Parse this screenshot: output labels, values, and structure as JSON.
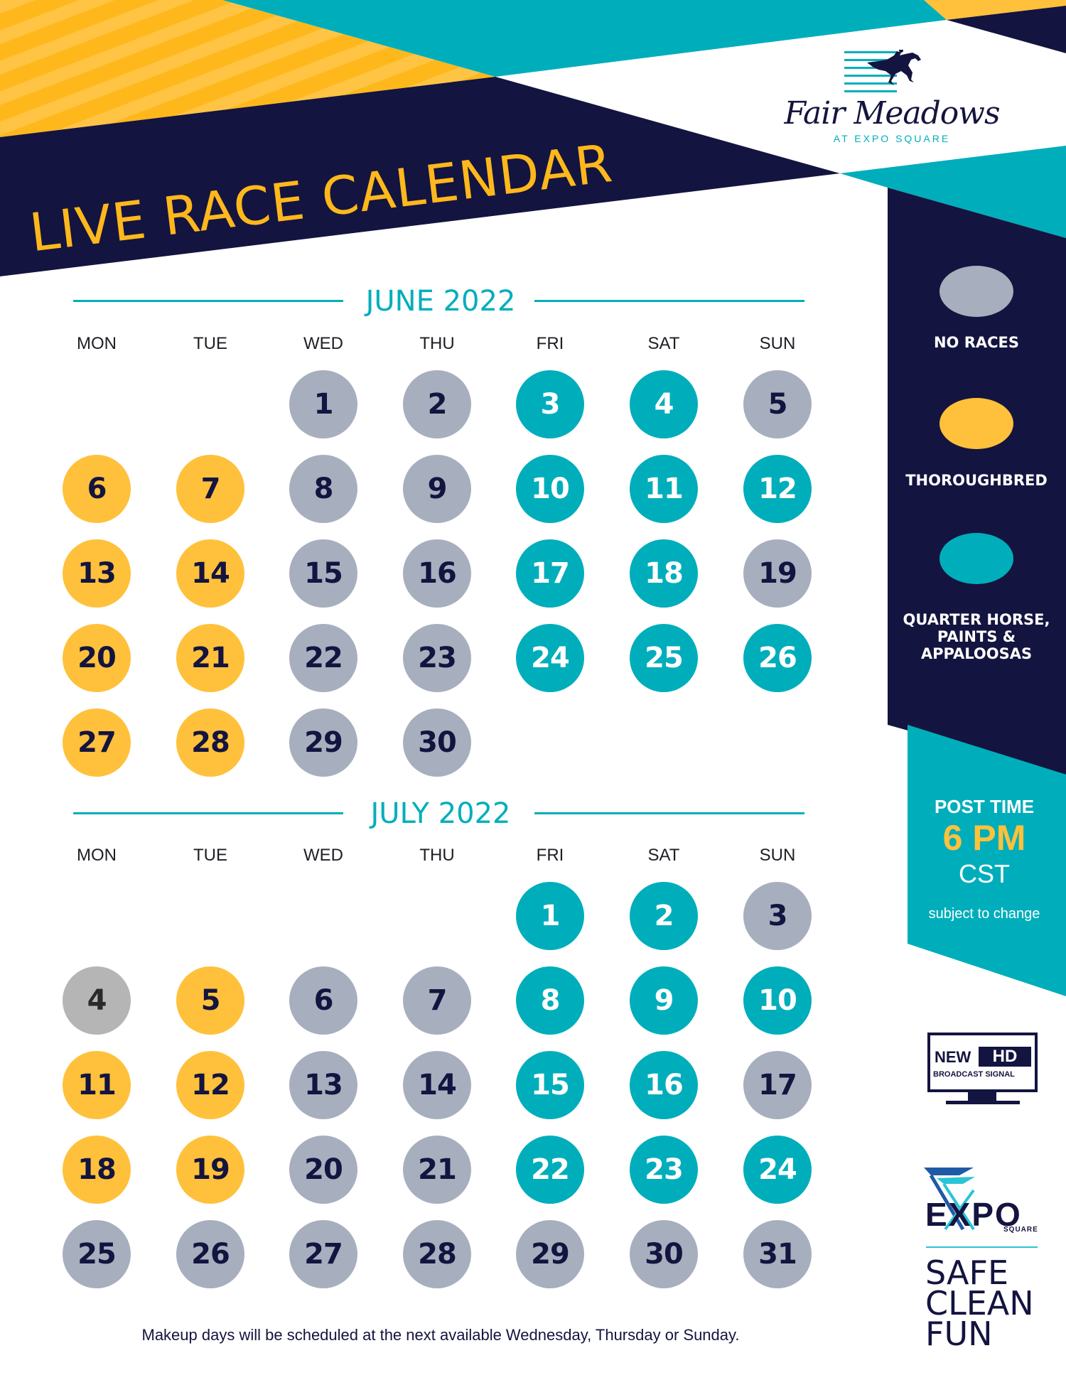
{
  "header": {
    "title": "LIVE RACE CALENDAR",
    "logo": {
      "name": "Fair Meadows",
      "subtitle": "AT EXPO SQUARE",
      "icon": "racehorse-jockey-icon"
    }
  },
  "colors": {
    "navy": "#141440",
    "teal": "#00AEBB",
    "yellow": "#FFC13B",
    "gray": "#A7AFBE",
    "holiday_gray": "#B5B5B5"
  },
  "weekdays": [
    "MON",
    "TUE",
    "WED",
    "THU",
    "FRI",
    "SAT",
    "SUN"
  ],
  "months": [
    {
      "title": "JUNE 2022",
      "days": [
        {
          "d": "1",
          "col": 2,
          "row": 0,
          "type": "none"
        },
        {
          "d": "2",
          "col": 3,
          "row": 0,
          "type": "none"
        },
        {
          "d": "3",
          "col": 4,
          "row": 0,
          "type": "qh"
        },
        {
          "d": "4",
          "col": 5,
          "row": 0,
          "type": "qh"
        },
        {
          "d": "5",
          "col": 6,
          "row": 0,
          "type": "none"
        },
        {
          "d": "6",
          "col": 0,
          "row": 1,
          "type": "thor"
        },
        {
          "d": "7",
          "col": 1,
          "row": 1,
          "type": "thor"
        },
        {
          "d": "8",
          "col": 2,
          "row": 1,
          "type": "none"
        },
        {
          "d": "9",
          "col": 3,
          "row": 1,
          "type": "none"
        },
        {
          "d": "10",
          "col": 4,
          "row": 1,
          "type": "qh"
        },
        {
          "d": "11",
          "col": 5,
          "row": 1,
          "type": "qh"
        },
        {
          "d": "12",
          "col": 6,
          "row": 1,
          "type": "qh"
        },
        {
          "d": "13",
          "col": 0,
          "row": 2,
          "type": "thor"
        },
        {
          "d": "14",
          "col": 1,
          "row": 2,
          "type": "thor"
        },
        {
          "d": "15",
          "col": 2,
          "row": 2,
          "type": "none"
        },
        {
          "d": "16",
          "col": 3,
          "row": 2,
          "type": "none"
        },
        {
          "d": "17",
          "col": 4,
          "row": 2,
          "type": "qh"
        },
        {
          "d": "18",
          "col": 5,
          "row": 2,
          "type": "qh"
        },
        {
          "d": "19",
          "col": 6,
          "row": 2,
          "type": "none"
        },
        {
          "d": "20",
          "col": 0,
          "row": 3,
          "type": "thor"
        },
        {
          "d": "21",
          "col": 1,
          "row": 3,
          "type": "thor"
        },
        {
          "d": "22",
          "col": 2,
          "row": 3,
          "type": "none"
        },
        {
          "d": "23",
          "col": 3,
          "row": 3,
          "type": "none"
        },
        {
          "d": "24",
          "col": 4,
          "row": 3,
          "type": "qh"
        },
        {
          "d": "25",
          "col": 5,
          "row": 3,
          "type": "qh"
        },
        {
          "d": "26",
          "col": 6,
          "row": 3,
          "type": "qh"
        },
        {
          "d": "27",
          "col": 0,
          "row": 4,
          "type": "thor"
        },
        {
          "d": "28",
          "col": 1,
          "row": 4,
          "type": "thor"
        },
        {
          "d": "29",
          "col": 2,
          "row": 4,
          "type": "none"
        },
        {
          "d": "30",
          "col": 3,
          "row": 4,
          "type": "none"
        }
      ]
    },
    {
      "title": "JULY 2022",
      "days": [
        {
          "d": "1",
          "col": 4,
          "row": 0,
          "type": "qh"
        },
        {
          "d": "2",
          "col": 5,
          "row": 0,
          "type": "qh"
        },
        {
          "d": "3",
          "col": 6,
          "row": 0,
          "type": "none"
        },
        {
          "d": "4",
          "col": 0,
          "row": 1,
          "type": "holiday"
        },
        {
          "d": "5",
          "col": 1,
          "row": 1,
          "type": "thor"
        },
        {
          "d": "6",
          "col": 2,
          "row": 1,
          "type": "none"
        },
        {
          "d": "7",
          "col": 3,
          "row": 1,
          "type": "none"
        },
        {
          "d": "8",
          "col": 4,
          "row": 1,
          "type": "qh"
        },
        {
          "d": "9",
          "col": 5,
          "row": 1,
          "type": "qh"
        },
        {
          "d": "10",
          "col": 6,
          "row": 1,
          "type": "qh"
        },
        {
          "d": "11",
          "col": 0,
          "row": 2,
          "type": "thor"
        },
        {
          "d": "12",
          "col": 1,
          "row": 2,
          "type": "thor"
        },
        {
          "d": "13",
          "col": 2,
          "row": 2,
          "type": "none"
        },
        {
          "d": "14",
          "col": 3,
          "row": 2,
          "type": "none"
        },
        {
          "d": "15",
          "col": 4,
          "row": 2,
          "type": "qh"
        },
        {
          "d": "16",
          "col": 5,
          "row": 2,
          "type": "qh"
        },
        {
          "d": "17",
          "col": 6,
          "row": 2,
          "type": "none"
        },
        {
          "d": "18",
          "col": 0,
          "row": 3,
          "type": "thor"
        },
        {
          "d": "19",
          "col": 1,
          "row": 3,
          "type": "thor"
        },
        {
          "d": "20",
          "col": 2,
          "row": 3,
          "type": "none"
        },
        {
          "d": "21",
          "col": 3,
          "row": 3,
          "type": "none"
        },
        {
          "d": "22",
          "col": 4,
          "row": 3,
          "type": "qh"
        },
        {
          "d": "23",
          "col": 5,
          "row": 3,
          "type": "qh"
        },
        {
          "d": "24",
          "col": 6,
          "row": 3,
          "type": "qh"
        },
        {
          "d": "25",
          "col": 0,
          "row": 4,
          "type": "none"
        },
        {
          "d": "26",
          "col": 1,
          "row": 4,
          "type": "none"
        },
        {
          "d": "27",
          "col": 2,
          "row": 4,
          "type": "none"
        },
        {
          "d": "28",
          "col": 3,
          "row": 4,
          "type": "none"
        },
        {
          "d": "29",
          "col": 4,
          "row": 4,
          "type": "none"
        },
        {
          "d": "30",
          "col": 5,
          "row": 4,
          "type": "none"
        },
        {
          "d": "31",
          "col": 6,
          "row": 4,
          "type": "none"
        }
      ]
    }
  ],
  "legend": {
    "items": [
      {
        "label": "NO RACES",
        "color": "#A7AFBE"
      },
      {
        "label": "THOROUGHBRED",
        "color": "#FFC13B"
      },
      {
        "label": "QUARTER HORSE, PAINTS & APPALOOSAS",
        "color": "#00AEBB"
      }
    ]
  },
  "post_time": {
    "label": "POST TIME",
    "time": "6 PM",
    "zone": "CST",
    "note": "subject to change"
  },
  "badges": {
    "tv": {
      "line1": "NEW",
      "hd": "HD",
      "line2": "BROADCAST SIGNAL"
    },
    "expo": {
      "brand": "EXPO",
      "sub": "SQUARE",
      "slogan": [
        "SAFE",
        "CLEAN",
        "FUN"
      ]
    }
  },
  "footer": {
    "note": "Makeup days will be scheduled at the next available Wednesday, Thursday or Sunday."
  }
}
